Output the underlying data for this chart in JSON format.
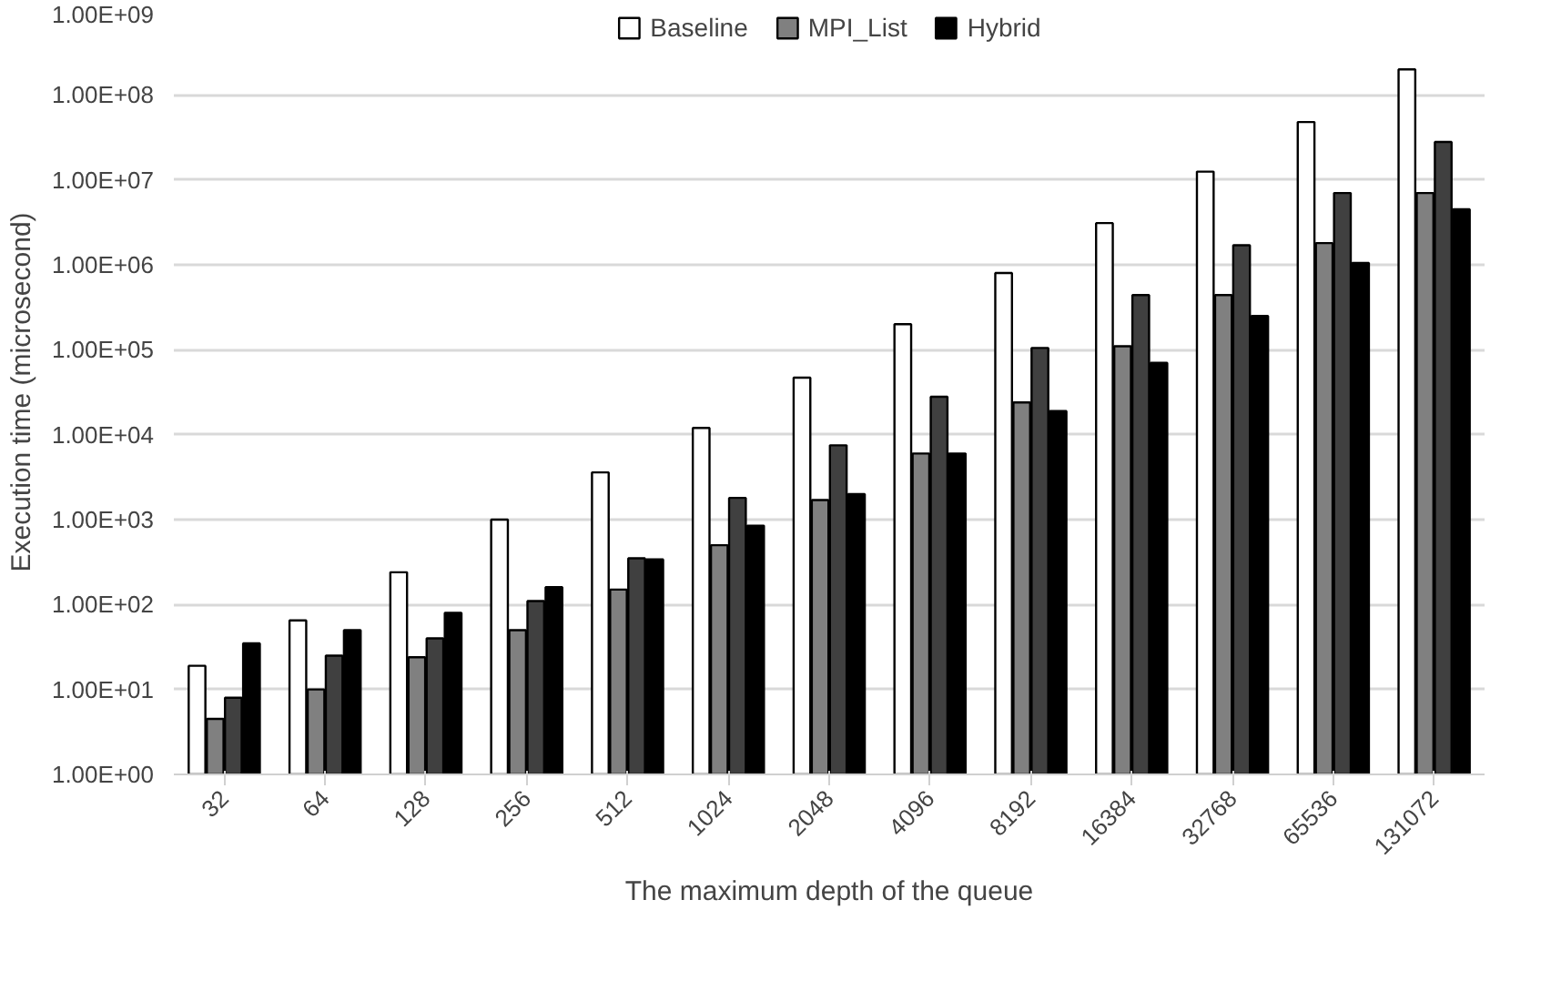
{
  "chart_data": {
    "type": "bar",
    "xlabel": "The maximum depth of the queue",
    "ylabel": "Execution time (microsecond)",
    "categories": [
      "32",
      "64",
      "128",
      "256",
      "512",
      "1024",
      "2048",
      "4096",
      "8192",
      "16384",
      "32768",
      "65536",
      "131072"
    ],
    "series": [
      {
        "name": "Baseline",
        "color": "#ffffff",
        "values": [
          19,
          65,
          240,
          1000,
          3600,
          12000,
          47000,
          200000,
          800000,
          3100000,
          12500000,
          48000000,
          200000000
        ]
      },
      {
        "name": "MPI_List",
        "color": "#808080",
        "values": [
          4.5,
          10,
          24,
          50,
          150,
          500,
          1700,
          6000,
          24000,
          110000,
          440000,
          1800000,
          7000000
        ]
      },
      {
        "color": "#404040",
        "values": [
          8,
          25,
          40,
          110,
          350,
          1800,
          7500,
          28000,
          105000,
          440000,
          1700000,
          7000000,
          28000000
        ]
      },
      {
        "name": "Hybrid",
        "color": "#000000",
        "values": [
          35,
          50,
          80,
          160,
          340,
          850,
          2000,
          6000,
          19000,
          70000,
          250000,
          1050000,
          4500000
        ]
      }
    ],
    "log": true,
    "ylim": [
      1,
      1000000000
    ],
    "yticks": [
      {
        "value": 1,
        "label": "1.00E+00"
      },
      {
        "value": 10,
        "label": "1.00E+01"
      },
      {
        "value": 100,
        "label": "1.00E+02"
      },
      {
        "value": 1000,
        "label": "1.00E+03"
      },
      {
        "value": 10000,
        "label": "1.00E+04"
      },
      {
        "value": 100000,
        "label": "1.00E+05"
      },
      {
        "value": 1000000,
        "label": "1.00E+06"
      },
      {
        "value": 10000000,
        "label": "1.00E+07"
      },
      {
        "value": 100000000,
        "label": "1.00E+08"
      },
      {
        "value": 1000000000,
        "label": "1.00E+09"
      }
    ],
    "grid": "y",
    "legend": "top"
  }
}
